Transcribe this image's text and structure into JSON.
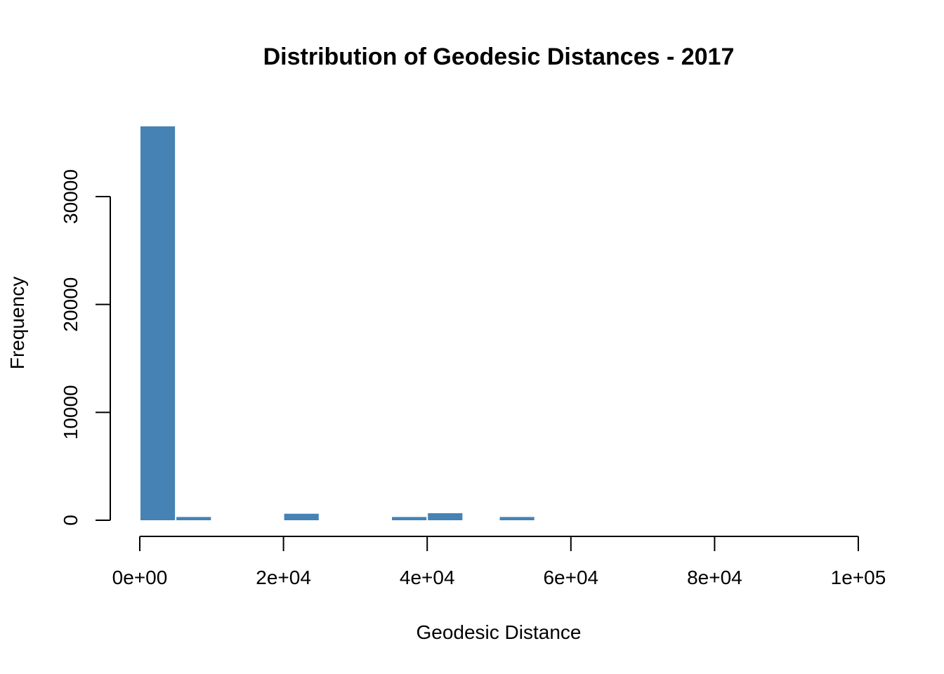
{
  "chart_data": {
    "type": "bar",
    "title": "Distribution of Geodesic Distances - 2017",
    "xlabel": "Geodesic Distance",
    "ylabel": "Frequency",
    "bin_edges": [
      0,
      5000,
      10000,
      15000,
      20000,
      25000,
      30000,
      35000,
      40000,
      45000,
      50000,
      55000
    ],
    "values": [
      36300,
      300,
      0,
      0,
      600,
      0,
      0,
      300,
      650,
      0,
      300
    ],
    "xlim": [
      0,
      100000
    ],
    "ylim": [
      0,
      36300
    ],
    "x_ticks": [
      0,
      20000,
      40000,
      60000,
      80000,
      100000
    ],
    "x_tick_labels": [
      "0e+00",
      "2e+04",
      "4e+04",
      "6e+04",
      "8e+04",
      "1e+05"
    ],
    "y_ticks": [
      0,
      10000,
      20000,
      30000
    ],
    "y_tick_labels": [
      "0",
      "10000",
      "20000",
      "30000"
    ],
    "bar_color": "#4682b4",
    "grid": false,
    "legend": "none"
  }
}
